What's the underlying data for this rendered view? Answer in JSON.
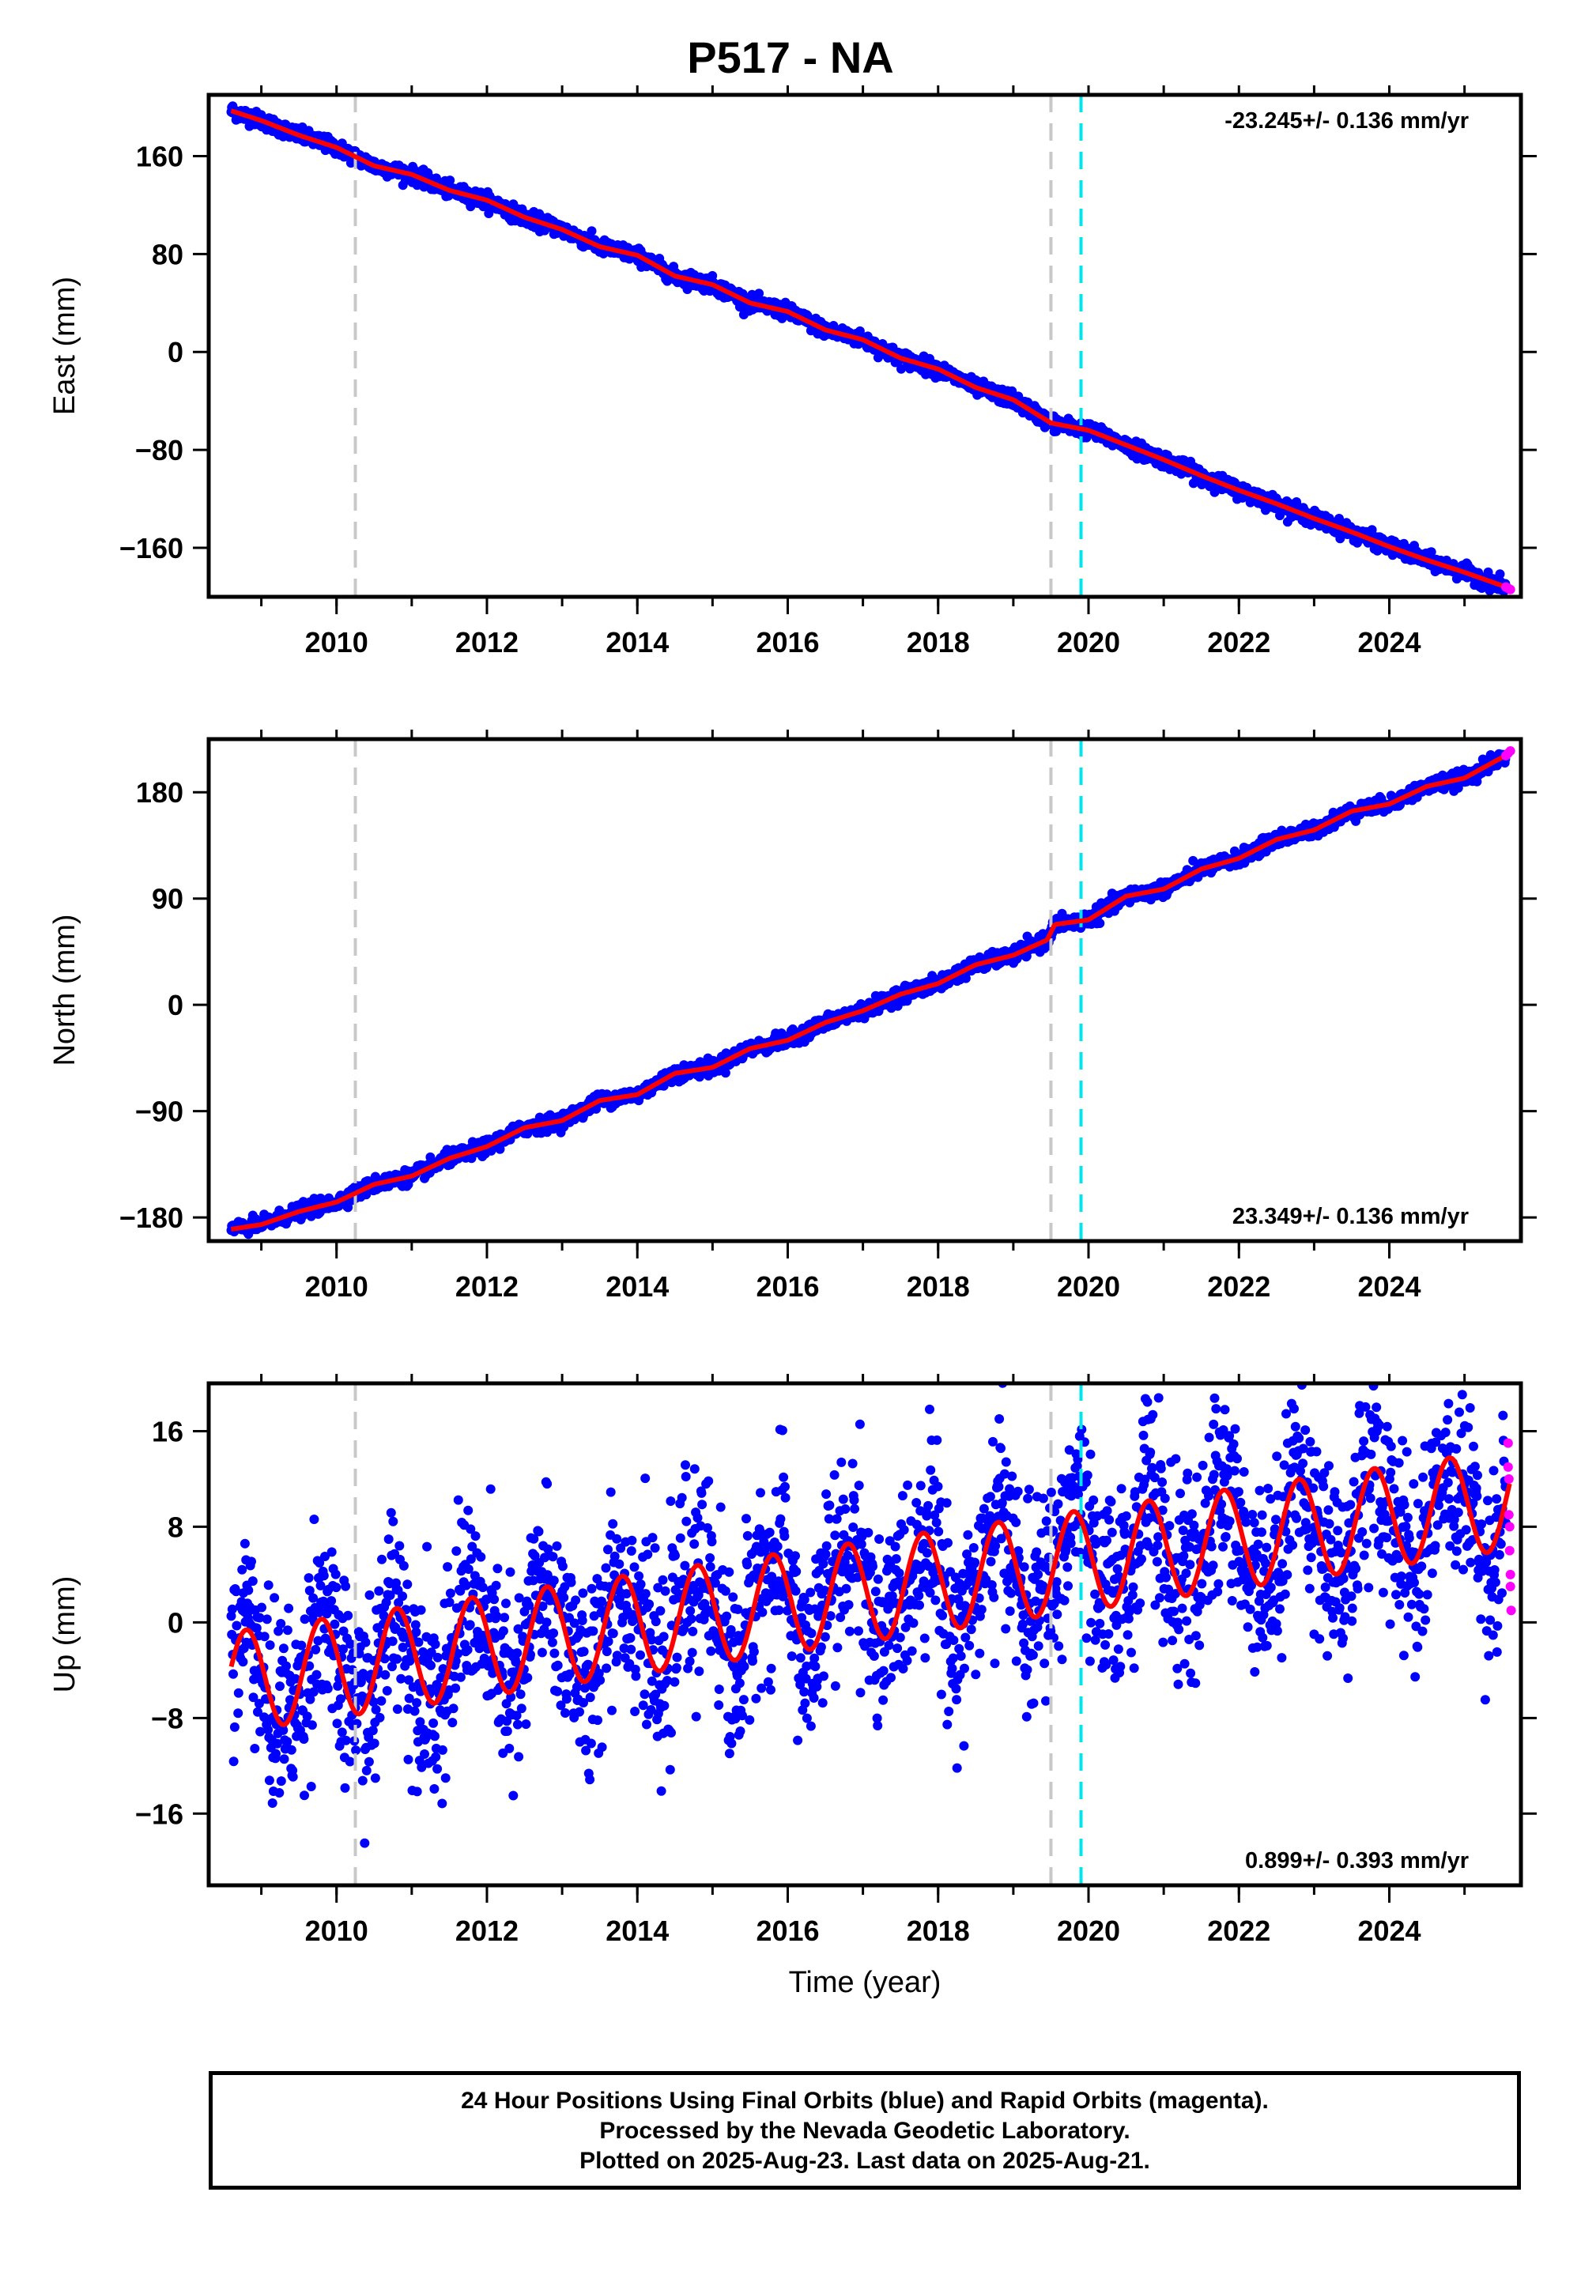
{
  "title": "P517 - NA",
  "footer": {
    "line1": "24 Hour Positions Using Final Orbits (blue) and Rapid Orbits (magenta).",
    "line2": "Processed by the Nevada Geodetic Laboratory.",
    "line3": "Plotted on 2025-Aug-23. Last data on 2025-Aug-21."
  },
  "colors": {
    "final_orbits": "#0000ff",
    "rapid_orbits": "#ff00ff",
    "model_fit": "#ff0000",
    "equipment_change_line": "#c8c8c8",
    "earthquake_line": "#00e5ee"
  },
  "chart_data": [
    {
      "type": "scatter",
      "ylabel": "East (mm)",
      "xlabel": "",
      "rate_text": "-23.245+/- 0.136 mm/yr",
      "xlim": [
        2008.3,
        2025.75
      ],
      "ylim": [
        -200,
        210
      ],
      "x_ticks": [
        "2010",
        "2012",
        "2014",
        "2016",
        "2018",
        "2020",
        "2022",
        "2024"
      ],
      "y_ticks": [
        "160",
        "80",
        "0",
        "−80",
        "−160"
      ],
      "y_tick_values": [
        160,
        80,
        0,
        -80,
        -160
      ],
      "vertical_lines": [
        {
          "x": 2010.25,
          "kind": "equipment-change",
          "color": "#c8c8c8"
        },
        {
          "x": 2019.5,
          "kind": "equipment-change",
          "color": "#c8c8c8"
        },
        {
          "x": 2019.9,
          "kind": "earthquake",
          "color": "#00e5ee"
        }
      ],
      "series": [
        {
          "role": "model",
          "x": [
            2008.6,
            2009.0,
            2009.5,
            2010.0,
            2010.5,
            2011.0,
            2011.5,
            2012.0,
            2012.5,
            2013.0,
            2013.5,
            2014.0,
            2014.5,
            2015.0,
            2015.5,
            2016.0,
            2016.5,
            2017.0,
            2017.5,
            2018.0,
            2018.5,
            2019.0,
            2019.5,
            2020.0,
            2020.5,
            2021.0,
            2021.5,
            2022.0,
            2022.5,
            2023.0,
            2023.5,
            2024.0,
            2024.5,
            2025.0,
            2025.6
          ],
          "y": [
            197,
            189,
            177,
            167,
            152,
            145,
            132,
            124,
            110,
            100,
            86,
            79,
            62,
            55,
            40,
            33,
            18,
            10,
            -5,
            -14,
            -29,
            -39,
            -58,
            -64,
            -76,
            -88,
            -101,
            -113,
            -124,
            -136,
            -147,
            -159,
            -170,
            -180,
            -193
          ]
        }
      ],
      "rapid_points": {
        "x": [
          2025.55,
          2025.58,
          2025.61
        ],
        "y": [
          -192,
          -193,
          -194
        ]
      },
      "noise_mm": 3
    },
    {
      "type": "scatter",
      "ylabel": "North (mm)",
      "xlabel": "",
      "rate_text": "23.349+/- 0.136 mm/yr",
      "xlim": [
        2008.3,
        2025.75
      ],
      "ylim": [
        -200,
        225
      ],
      "x_ticks": [
        "2010",
        "2012",
        "2014",
        "2016",
        "2018",
        "2020",
        "2022",
        "2024"
      ],
      "y_ticks": [
        "180",
        "90",
        "0",
        "−90",
        "−180"
      ],
      "y_tick_values": [
        180,
        90,
        0,
        -90,
        -180
      ],
      "vertical_lines": [
        {
          "x": 2010.25,
          "kind": "equipment-change",
          "color": "#c8c8c8"
        },
        {
          "x": 2019.5,
          "kind": "equipment-change",
          "color": "#c8c8c8"
        },
        {
          "x": 2019.9,
          "kind": "earthquake",
          "color": "#00e5ee"
        }
      ],
      "series": [
        {
          "role": "model",
          "x": [
            2008.6,
            2009.0,
            2009.5,
            2010.0,
            2010.5,
            2011.0,
            2011.5,
            2012.0,
            2012.5,
            2013.0,
            2013.5,
            2014.0,
            2014.5,
            2015.0,
            2015.5,
            2016.0,
            2016.5,
            2017.0,
            2017.5,
            2018.0,
            2018.5,
            2019.0,
            2019.45,
            2019.55,
            2020.0,
            2020.5,
            2021.0,
            2021.5,
            2022.0,
            2022.5,
            2023.0,
            2023.5,
            2024.0,
            2024.5,
            2025.0,
            2025.6
          ],
          "y": [
            -190,
            -186,
            -175,
            -167,
            -152,
            -145,
            -130,
            -120,
            -104,
            -98,
            -81,
            -76,
            -58,
            -53,
            -37,
            -30,
            -15,
            -5,
            9,
            18,
            34,
            42,
            55,
            68,
            72,
            92,
            98,
            115,
            124,
            140,
            148,
            164,
            170,
            185,
            192,
            213
          ]
        }
      ],
      "rapid_points": {
        "x": [
          2025.55,
          2025.58,
          2025.61
        ],
        "y": [
          211,
          213,
          215
        ]
      },
      "noise_mm": 3
    },
    {
      "type": "scatter",
      "ylabel": "Up (mm)",
      "xlabel": "Time (year)",
      "rate_text": "0.899+/- 0.393 mm/yr",
      "xlim": [
        2008.3,
        2025.75
      ],
      "ylim": [
        -22,
        20
      ],
      "x_ticks": [
        "2010",
        "2012",
        "2014",
        "2016",
        "2018",
        "2020",
        "2022",
        "2024"
      ],
      "y_ticks": [
        "16",
        "8",
        "0",
        "−8",
        "−16"
      ],
      "y_tick_values": [
        16,
        8,
        0,
        -8,
        -16
      ],
      "vertical_lines": [
        {
          "x": 2010.25,
          "kind": "equipment-change",
          "color": "#c8c8c8"
        },
        {
          "x": 2019.5,
          "kind": "equipment-change",
          "color": "#c8c8c8"
        },
        {
          "x": 2019.9,
          "kind": "earthquake",
          "color": "#00e5ee"
        }
      ],
      "seasonal_model": {
        "offset": -5.0,
        "rate_per_year": 0.9,
        "x0": 2008.6,
        "amplitude": 4.2,
        "phase_year": 0.55
      },
      "rapid_points": {
        "x": [
          2025.58,
          2025.58,
          2025.59,
          2025.59,
          2025.6,
          2025.6,
          2025.61,
          2025.61,
          2025.62
        ],
        "y": [
          15,
          13,
          12,
          9,
          8,
          6,
          4,
          3,
          1
        ]
      },
      "noise_mm": 4
    }
  ]
}
